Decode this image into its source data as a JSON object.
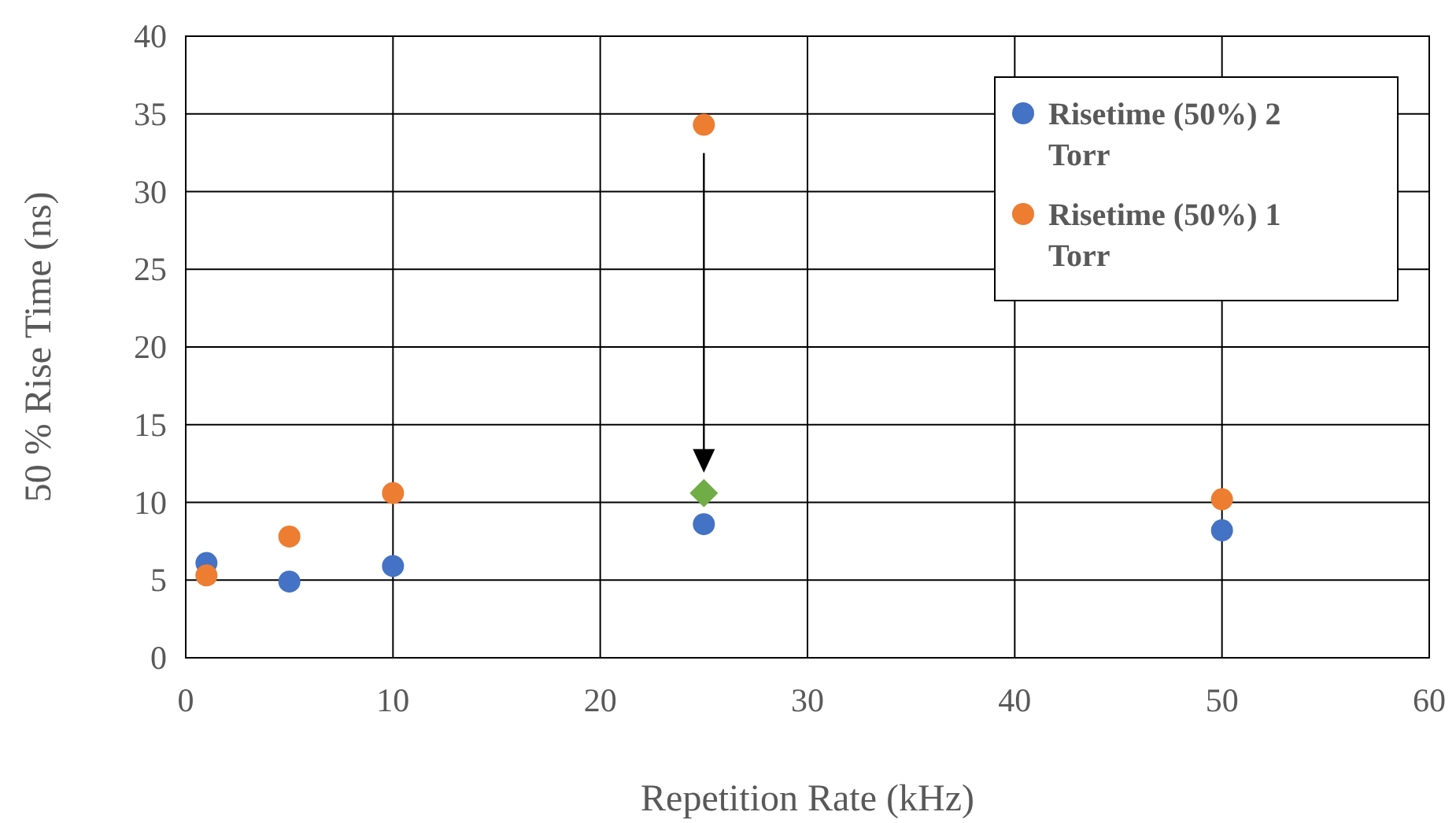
{
  "chart_data": {
    "type": "scatter",
    "xlabel": "Repetition Rate (kHz)",
    "ylabel": "50 % Rise Time (ns)",
    "xlim": [
      0,
      60
    ],
    "xticks": [
      0,
      10,
      20,
      30,
      40,
      50,
      60
    ],
    "ylim": [
      0,
      40
    ],
    "yticks": [
      0,
      5,
      10,
      15,
      20,
      25,
      30,
      35,
      40
    ],
    "grid": true,
    "legend": "top right",
    "series": [
      {
        "name": "Risetime (50%) 2 Torr",
        "color": "#4472c4",
        "marker": "circle",
        "x": [
          1,
          5,
          10,
          25,
          50
        ],
        "values": [
          6.1,
          4.9,
          5.9,
          8.6,
          8.2
        ]
      },
      {
        "name": "Risetime (50%) 1 Torr",
        "color": "#ed7d31",
        "marker": "circle",
        "x": [
          1,
          5,
          10,
          25,
          50
        ],
        "values": [
          5.3,
          7.8,
          10.6,
          34.3,
          10.2
        ]
      },
      {
        "color": "#70ad47",
        "marker": "diamond",
        "x": [
          25
        ],
        "values": [
          10.6
        ]
      }
    ]
  }
}
